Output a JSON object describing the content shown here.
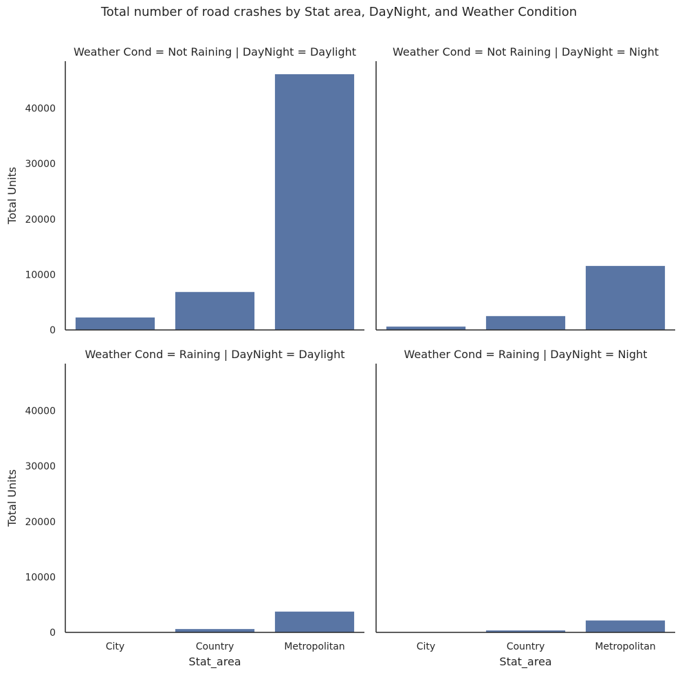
{
  "chart_data": {
    "type": "bar",
    "title": "Total number of road crashes by Stat area, DayNight, and Weather Condition",
    "xlabel": "Stat_area",
    "ylabel": "Total Units",
    "ylim": [
      0,
      48500
    ],
    "yticks": [
      0,
      10000,
      20000,
      30000,
      40000
    ],
    "categories": [
      "City",
      "Country",
      "Metropolitan"
    ],
    "bar_color": "#5975a4",
    "grid": false,
    "facets": [
      {
        "row": 0,
        "col": 0,
        "title": "Weather Cond = Not Raining | DayNight = Daylight",
        "values": [
          2300,
          6900,
          46200
        ]
      },
      {
        "row": 0,
        "col": 1,
        "title": "Weather Cond = Not Raining | DayNight = Night",
        "values": [
          650,
          2550,
          11600
        ]
      },
      {
        "row": 1,
        "col": 0,
        "title": "Weather Cond = Raining | DayNight = Daylight",
        "values": [
          60,
          650,
          3800
        ]
      },
      {
        "row": 1,
        "col": 1,
        "title": "Weather Cond = Raining | DayNight = Night",
        "values": [
          40,
          400,
          2200
        ]
      }
    ]
  }
}
